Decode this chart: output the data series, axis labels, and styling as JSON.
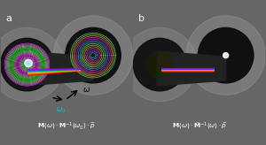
{
  "figsize": [
    3.0,
    1.64
  ],
  "dpi": 100,
  "panel_a_label": "a",
  "panel_b_label": "b",
  "bg_color_outer": "#666666",
  "bg_color_a": "#3a3a3a",
  "bg_color_b": "#111111",
  "text_color": "#ffffff",
  "omega0_color": "#00cccc"
}
